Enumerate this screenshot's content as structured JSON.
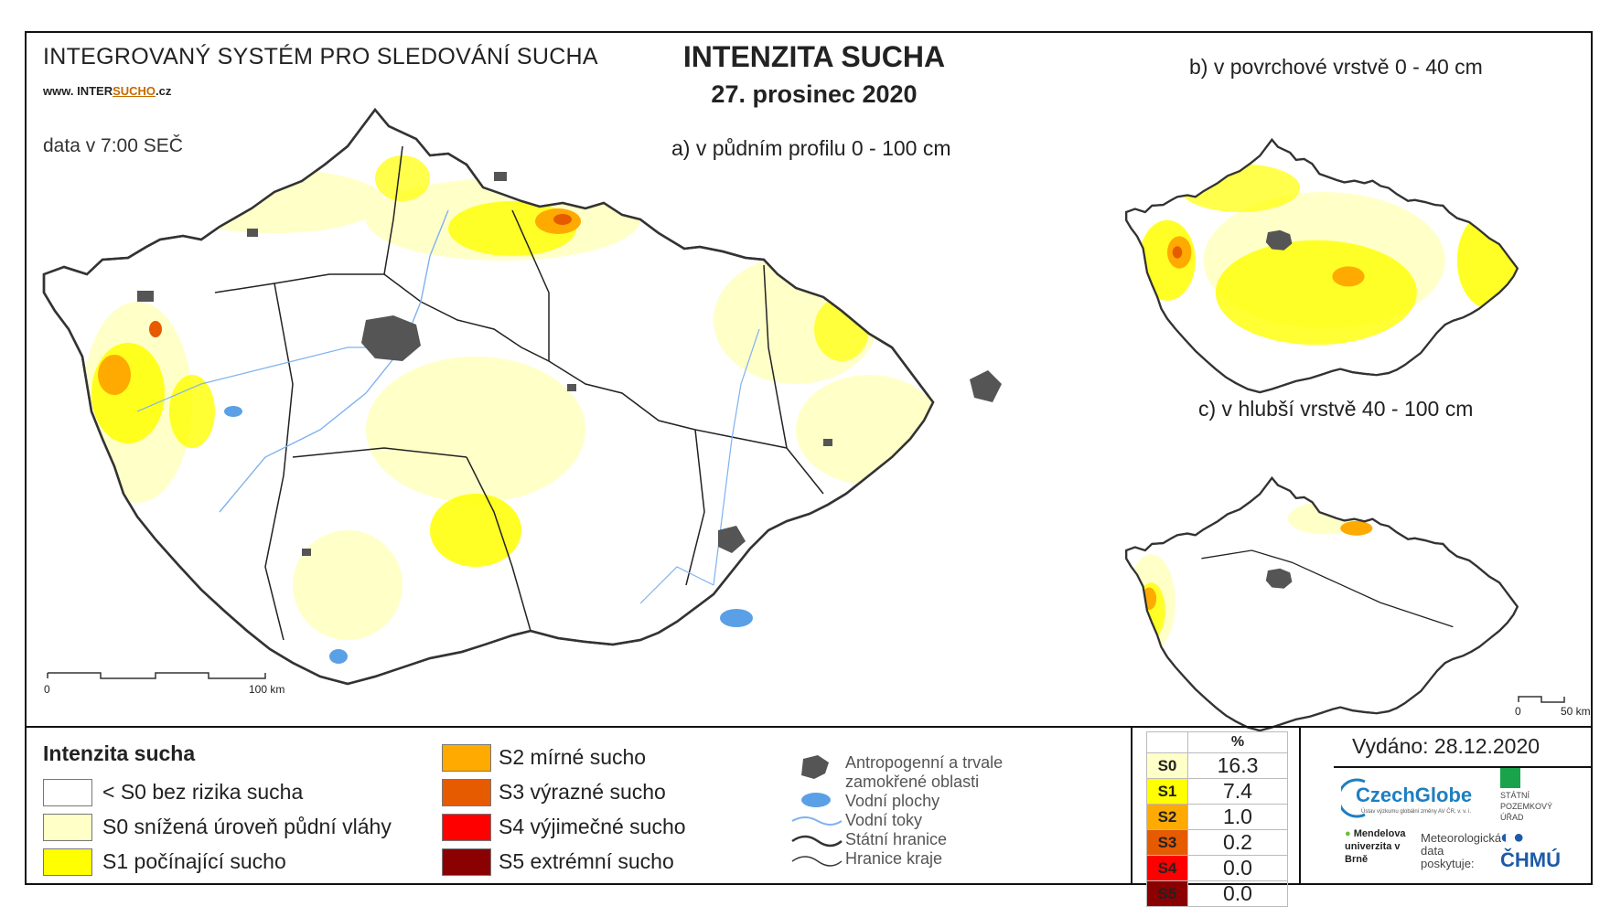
{
  "header": {
    "system_title": "INTEGROVANÝ SYSTÉM PRO SLEDOVÁNÍ SUCHA",
    "website_prefix": "www. INTER",
    "website_highlight": "SUCHO",
    "website_suffix": ".cz",
    "data_time": "data v 7:00 SEČ",
    "title": "INTENZITA SUCHA",
    "date": "27. prosinec 2020"
  },
  "panels": {
    "a": "a) v půdním profilu 0 - 100 cm",
    "b": "b) v povrchové vrstvě 0 - 40 cm",
    "c": "c) v hlubší vrstvě 40 - 100 cm"
  },
  "scalebars": {
    "main": {
      "start": "0",
      "end": "100 km"
    },
    "small": {
      "start": "0",
      "end": "50 km"
    }
  },
  "legend": {
    "title": "Intenzita sucha",
    "classes": [
      {
        "label": "< S0 bez rizika sucha",
        "color": "#ffffff"
      },
      {
        "label": "S0 snížená úroveň půdní vláhy",
        "color": "#ffffc8"
      },
      {
        "label": "S1 počínající sucho",
        "color": "#ffff00"
      },
      {
        "label": "S2 mírné sucho",
        "color": "#ffaa00"
      },
      {
        "label": "S3 výrazné sucho",
        "color": "#e65a00"
      },
      {
        "label": "S4 výjimečné sucho",
        "color": "#ff0000"
      },
      {
        "label": "S5 extrémní sucho",
        "color": "#8b0000"
      }
    ],
    "layers": [
      {
        "label": "Antropogenní a trvale zamokřené oblasti",
        "icon": "urban-area-icon"
      },
      {
        "label": "Vodní plochy",
        "icon": "water-body-icon"
      },
      {
        "label": "Vodní toky",
        "icon": "river-line-icon"
      },
      {
        "label": "Státní hranice",
        "icon": "state-border-icon"
      },
      {
        "label": "Hranice kraje",
        "icon": "region-border-icon"
      }
    ]
  },
  "stats": {
    "header": "%",
    "rows": [
      {
        "code": "S0",
        "value": "16.3",
        "color": "#ffffc8",
        "text": "#222"
      },
      {
        "code": "S1",
        "value": "7.4",
        "color": "#ffff00",
        "text": "#222"
      },
      {
        "code": "S2",
        "value": "1.0",
        "color": "#ffaa00",
        "text": "#222"
      },
      {
        "code": "S3",
        "value": "0.2",
        "color": "#e65a00",
        "text": "#222"
      },
      {
        "code": "S4",
        "value": "0.0",
        "color": "#ff0000",
        "text": "#222"
      },
      {
        "code": "S5",
        "value": "0.0",
        "color": "#8b0000",
        "text": "#222"
      }
    ]
  },
  "footer": {
    "issued": "Vydáno: 28.12.2020",
    "czechglobe": "CzechGlobe",
    "czechglobe_sub": "Ústav výzkumu globální změny AV ČR, v. v. i.",
    "spu": "STÁTNÍ POZEMKOVÝ ÚŘAD",
    "mendel": "Mendelova univerzita v Brně",
    "meteo": "Meteorologická data poskytuje:",
    "chmu": "ČHMÚ"
  },
  "colors": {
    "outline": "#333333",
    "river": "#7fb2f0",
    "urban": "#555555",
    "water": "#5aa0e6"
  }
}
